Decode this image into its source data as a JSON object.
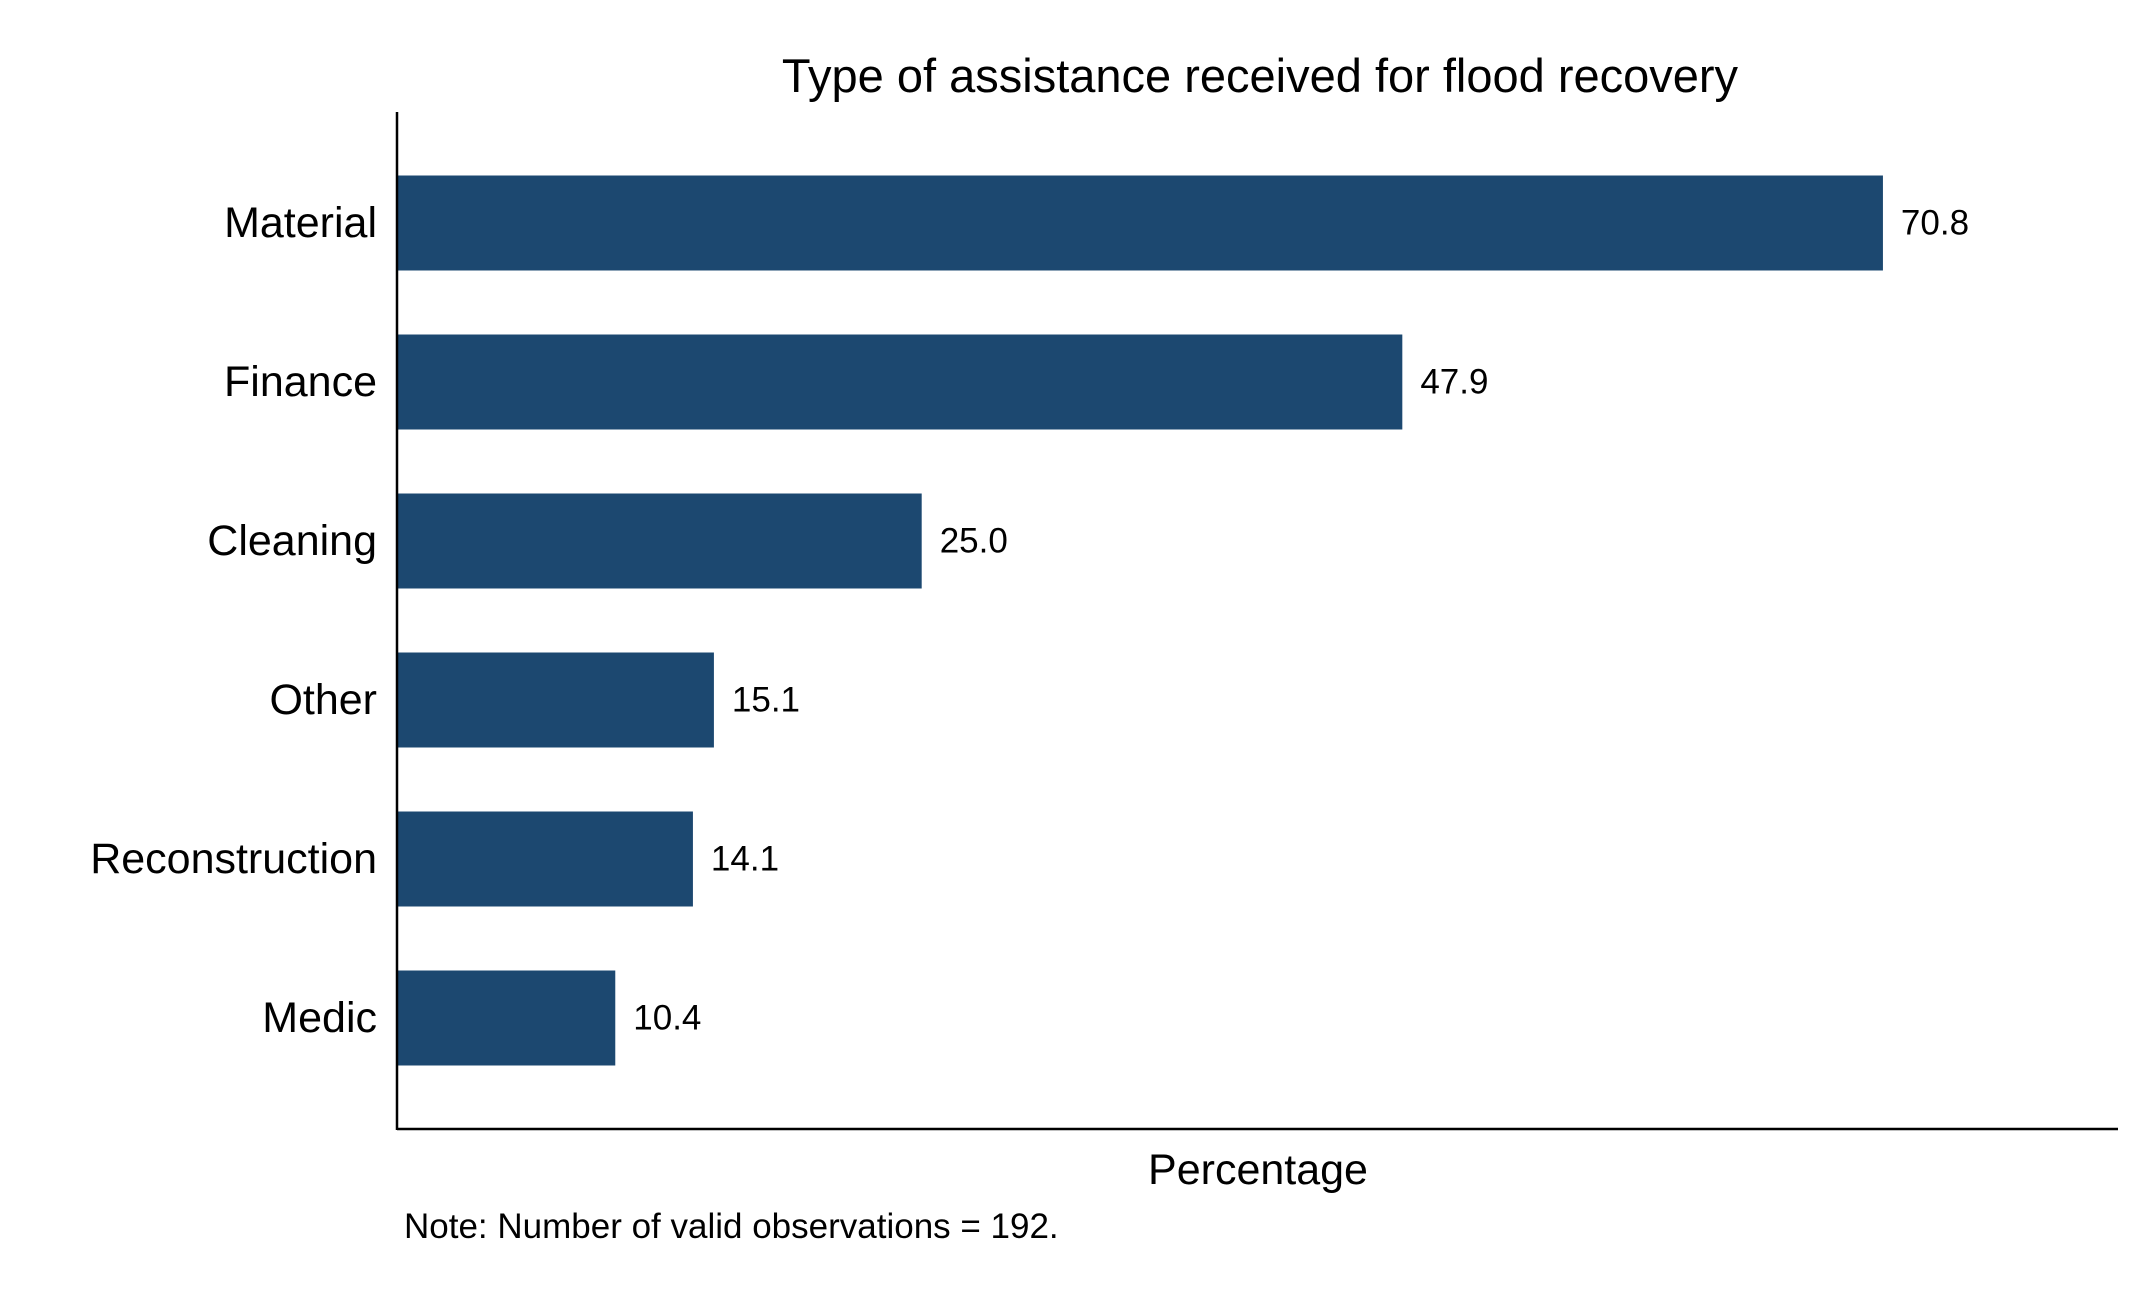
{
  "chart_data": {
    "type": "bar",
    "orientation": "horizontal",
    "title": "Type of assistance received for flood recovery",
    "xlabel": "Percentage",
    "ylabel": "",
    "categories": [
      "Material",
      "Finance",
      "Cleaning",
      "Other",
      "Reconstruction",
      "Medic"
    ],
    "values": [
      70.8,
      47.9,
      25.0,
      15.1,
      14.1,
      10.4
    ],
    "value_labels": [
      "70.8",
      "47.9",
      "25.0",
      "15.1",
      "14.1",
      "10.4"
    ],
    "xlim": [
      0,
      82
    ],
    "grid": false,
    "legend": "none",
    "bar_color": "#1c4870",
    "note": "Note: Number of valid observations = 192."
  }
}
